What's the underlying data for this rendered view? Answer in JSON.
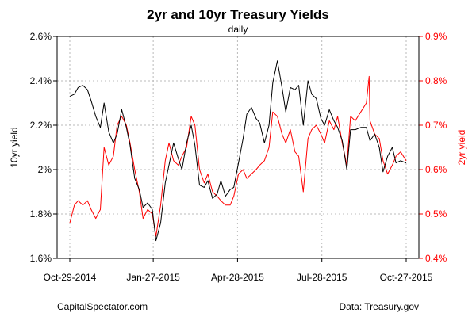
{
  "chart_data": {
    "type": "line",
    "title": "2yr and 10yr Treasury Yields",
    "subtitle": "daily",
    "x_tick_labels": [
      "Oct-29-2014",
      "Jan-27-2015",
      "Apr-28-2015",
      "Jul-28-2015",
      "Oct-27-2015"
    ],
    "x_ticks": [
      "2014-10-29",
      "2015-01-27",
      "2015-04-28",
      "2015-07-28",
      "2015-10-27"
    ],
    "xlim": [
      "2014-10-29",
      "2015-10-27"
    ],
    "grid": true,
    "left_axis": {
      "label": "10yr yield",
      "ylim": [
        1.6,
        2.6
      ],
      "ticks": [
        1.6,
        1.8,
        2.0,
        2.2,
        2.4,
        2.6
      ],
      "tick_labels": [
        "1.6%",
        "1.8%",
        "2%",
        "2.2%",
        "2.4%",
        "2.6%"
      ]
    },
    "right_axis": {
      "label": "2yr yield",
      "ylim": [
        0.4,
        0.9
      ],
      "ticks": [
        0.4,
        0.5,
        0.6,
        0.7,
        0.8,
        0.9
      ],
      "tick_labels": [
        "0.4%",
        "0.5%",
        "0.6%",
        "0.7%",
        "0.8%",
        "0.9%"
      ],
      "color": "#ff0000"
    },
    "series": [
      {
        "axis": "left",
        "color": "#000000",
        "points": [
          [
            "2014-10-29",
            2.33
          ],
          [
            "2014-11-03",
            2.34
          ],
          [
            "2014-11-07",
            2.37
          ],
          [
            "2014-11-12",
            2.38
          ],
          [
            "2014-11-17",
            2.36
          ],
          [
            "2014-11-21",
            2.31
          ],
          [
            "2014-11-26",
            2.24
          ],
          [
            "2014-12-01",
            2.19
          ],
          [
            "2014-12-05",
            2.3
          ],
          [
            "2014-12-10",
            2.17
          ],
          [
            "2014-12-15",
            2.12
          ],
          [
            "2014-12-19",
            2.16
          ],
          [
            "2014-12-24",
            2.27
          ],
          [
            "2014-12-29",
            2.19
          ],
          [
            "2015-01-02",
            2.11
          ],
          [
            "2015-01-07",
            1.96
          ],
          [
            "2015-01-12",
            1.91
          ],
          [
            "2015-01-16",
            1.83
          ],
          [
            "2015-01-21",
            1.85
          ],
          [
            "2015-01-26",
            1.82
          ],
          [
            "2015-01-30",
            1.68
          ],
          [
            "2015-02-04",
            1.76
          ],
          [
            "2015-02-09",
            1.94
          ],
          [
            "2015-02-13",
            2.02
          ],
          [
            "2015-02-18",
            2.12
          ],
          [
            "2015-02-23",
            2.05
          ],
          [
            "2015-02-27",
            2.0
          ],
          [
            "2015-03-04",
            2.12
          ],
          [
            "2015-03-09",
            2.2
          ],
          [
            "2015-03-13",
            2.11
          ],
          [
            "2015-03-18",
            1.93
          ],
          [
            "2015-03-23",
            1.92
          ],
          [
            "2015-03-27",
            1.95
          ],
          [
            "2015-04-01",
            1.87
          ],
          [
            "2015-04-06",
            1.89
          ],
          [
            "2015-04-10",
            1.95
          ],
          [
            "2015-04-15",
            1.88
          ],
          [
            "2015-04-20",
            1.91
          ],
          [
            "2015-04-24",
            1.92
          ],
          [
            "2015-04-29",
            2.03
          ],
          [
            "2015-05-04",
            2.14
          ],
          [
            "2015-05-08",
            2.25
          ],
          [
            "2015-05-13",
            2.28
          ],
          [
            "2015-05-18",
            2.23
          ],
          [
            "2015-05-22",
            2.21
          ],
          [
            "2015-05-27",
            2.12
          ],
          [
            "2015-06-01",
            2.2
          ],
          [
            "2015-06-05",
            2.39
          ],
          [
            "2015-06-10",
            2.49
          ],
          [
            "2015-06-15",
            2.37
          ],
          [
            "2015-06-19",
            2.26
          ],
          [
            "2015-06-24",
            2.37
          ],
          [
            "2015-06-29",
            2.36
          ],
          [
            "2015-07-03",
            2.38
          ],
          [
            "2015-07-08",
            2.2
          ],
          [
            "2015-07-13",
            2.4
          ],
          [
            "2015-07-17",
            2.34
          ],
          [
            "2015-07-22",
            2.32
          ],
          [
            "2015-07-27",
            2.23
          ],
          [
            "2015-07-31",
            2.2
          ],
          [
            "2015-08-05",
            2.27
          ],
          [
            "2015-08-10",
            2.22
          ],
          [
            "2015-08-14",
            2.19
          ],
          [
            "2015-08-19",
            2.13
          ],
          [
            "2015-08-24",
            2.0
          ],
          [
            "2015-08-28",
            2.18
          ],
          [
            "2015-09-02",
            2.18
          ],
          [
            "2015-09-08",
            2.19
          ],
          [
            "2015-09-14",
            2.19
          ],
          [
            "2015-09-18",
            2.13
          ],
          [
            "2015-09-23",
            2.16
          ],
          [
            "2015-09-28",
            2.1
          ],
          [
            "2015-10-02",
            1.99
          ],
          [
            "2015-10-07",
            2.06
          ],
          [
            "2015-10-12",
            2.1
          ],
          [
            "2015-10-16",
            2.03
          ],
          [
            "2015-10-21",
            2.04
          ],
          [
            "2015-10-27",
            2.03
          ]
        ]
      },
      {
        "axis": "right",
        "color": "#ff0000",
        "points": [
          [
            "2014-10-29",
            0.48
          ],
          [
            "2014-11-03",
            0.52
          ],
          [
            "2014-11-07",
            0.53
          ],
          [
            "2014-11-12",
            0.52
          ],
          [
            "2014-11-17",
            0.53
          ],
          [
            "2014-11-21",
            0.51
          ],
          [
            "2014-11-26",
            0.49
          ],
          [
            "2014-12-01",
            0.51
          ],
          [
            "2014-12-05",
            0.65
          ],
          [
            "2014-12-10",
            0.61
          ],
          [
            "2014-12-15",
            0.63
          ],
          [
            "2014-12-19",
            0.7
          ],
          [
            "2014-12-24",
            0.72
          ],
          [
            "2014-12-29",
            0.7
          ],
          [
            "2015-01-02",
            0.66
          ],
          [
            "2015-01-07",
            0.6
          ],
          [
            "2015-01-12",
            0.55
          ],
          [
            "2015-01-16",
            0.49
          ],
          [
            "2015-01-21",
            0.51
          ],
          [
            "2015-01-26",
            0.5
          ],
          [
            "2015-01-30",
            0.45
          ],
          [
            "2015-02-04",
            0.52
          ],
          [
            "2015-02-09",
            0.62
          ],
          [
            "2015-02-13",
            0.66
          ],
          [
            "2015-02-18",
            0.62
          ],
          [
            "2015-02-23",
            0.61
          ],
          [
            "2015-02-27",
            0.63
          ],
          [
            "2015-03-04",
            0.65
          ],
          [
            "2015-03-09",
            0.72
          ],
          [
            "2015-03-13",
            0.7
          ],
          [
            "2015-03-18",
            0.6
          ],
          [
            "2015-03-23",
            0.57
          ],
          [
            "2015-03-27",
            0.59
          ],
          [
            "2015-04-01",
            0.55
          ],
          [
            "2015-04-06",
            0.54
          ],
          [
            "2015-04-10",
            0.53
          ],
          [
            "2015-04-15",
            0.52
          ],
          [
            "2015-04-20",
            0.52
          ],
          [
            "2015-04-24",
            0.54
          ],
          [
            "2015-04-29",
            0.59
          ],
          [
            "2015-05-04",
            0.6
          ],
          [
            "2015-05-08",
            0.58
          ],
          [
            "2015-05-13",
            0.59
          ],
          [
            "2015-05-18",
            0.6
          ],
          [
            "2015-05-22",
            0.61
          ],
          [
            "2015-05-27",
            0.62
          ],
          [
            "2015-06-01",
            0.65
          ],
          [
            "2015-06-05",
            0.73
          ],
          [
            "2015-06-10",
            0.72
          ],
          [
            "2015-06-15",
            0.68
          ],
          [
            "2015-06-19",
            0.66
          ],
          [
            "2015-06-24",
            0.69
          ],
          [
            "2015-06-29",
            0.64
          ],
          [
            "2015-07-03",
            0.63
          ],
          [
            "2015-07-08",
            0.55
          ],
          [
            "2015-07-13",
            0.67
          ],
          [
            "2015-07-17",
            0.69
          ],
          [
            "2015-07-22",
            0.7
          ],
          [
            "2015-07-27",
            0.68
          ],
          [
            "2015-07-31",
            0.66
          ],
          [
            "2015-08-05",
            0.71
          ],
          [
            "2015-08-10",
            0.69
          ],
          [
            "2015-08-14",
            0.72
          ],
          [
            "2015-08-19",
            0.66
          ],
          [
            "2015-08-24",
            0.61
          ],
          [
            "2015-08-28",
            0.72
          ],
          [
            "2015-09-02",
            0.71
          ],
          [
            "2015-09-08",
            0.73
          ],
          [
            "2015-09-14",
            0.75
          ],
          [
            "2015-09-17",
            0.81
          ],
          [
            "2015-09-18",
            0.71
          ],
          [
            "2015-09-23",
            0.68
          ],
          [
            "2015-09-28",
            0.67
          ],
          [
            "2015-10-02",
            0.62
          ],
          [
            "2015-10-07",
            0.59
          ],
          [
            "2015-10-12",
            0.61
          ],
          [
            "2015-10-16",
            0.63
          ],
          [
            "2015-10-21",
            0.64
          ],
          [
            "2015-10-27",
            0.62
          ]
        ]
      }
    ]
  },
  "footer": {
    "source_left": "CapitalSpectator.com",
    "source_right": "Data: Treasury.gov"
  }
}
